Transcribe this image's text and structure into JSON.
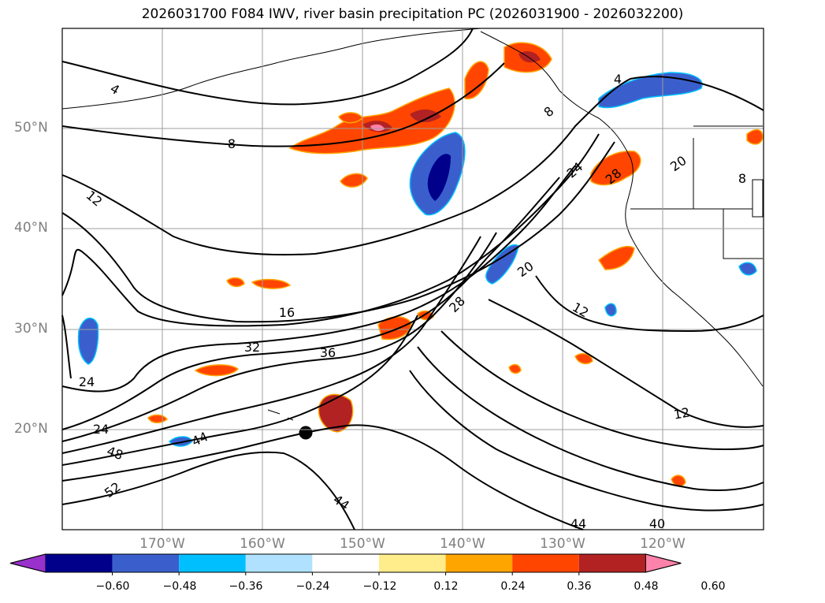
{
  "title": "2026031700 F084 IWV, river basin precipitation PC (2026031900 - 2026032200)",
  "axes": {
    "lat_ticks": [
      "50°N",
      "40°N",
      "30°N",
      "20°N"
    ],
    "lon_ticks": [
      "170°W",
      "160°W",
      "150°W",
      "140°W",
      "130°W",
      "120°W"
    ]
  },
  "contour_labels": [
    "4",
    "4",
    "8",
    "8",
    "8",
    "12",
    "12",
    "12",
    "16",
    "20",
    "20",
    "24",
    "24",
    "24",
    "28",
    "28",
    "32",
    "36",
    "40",
    "44",
    "44",
    "44",
    "48",
    "52"
  ],
  "colorbar": {
    "ticks": [
      "−0.60",
      "−0.48",
      "−0.36",
      "−0.24",
      "−0.12",
      "0.12",
      "0.24",
      "0.36",
      "0.48",
      "0.60"
    ],
    "colors": [
      "#9932cc",
      "#00008b",
      "#3a5fcd",
      "#00bfff",
      "#b0e2ff",
      "#ffffff",
      "#ffec8b",
      "#ffa500",
      "#ff4500",
      "#b22222",
      "#ff82ab"
    ]
  }
}
